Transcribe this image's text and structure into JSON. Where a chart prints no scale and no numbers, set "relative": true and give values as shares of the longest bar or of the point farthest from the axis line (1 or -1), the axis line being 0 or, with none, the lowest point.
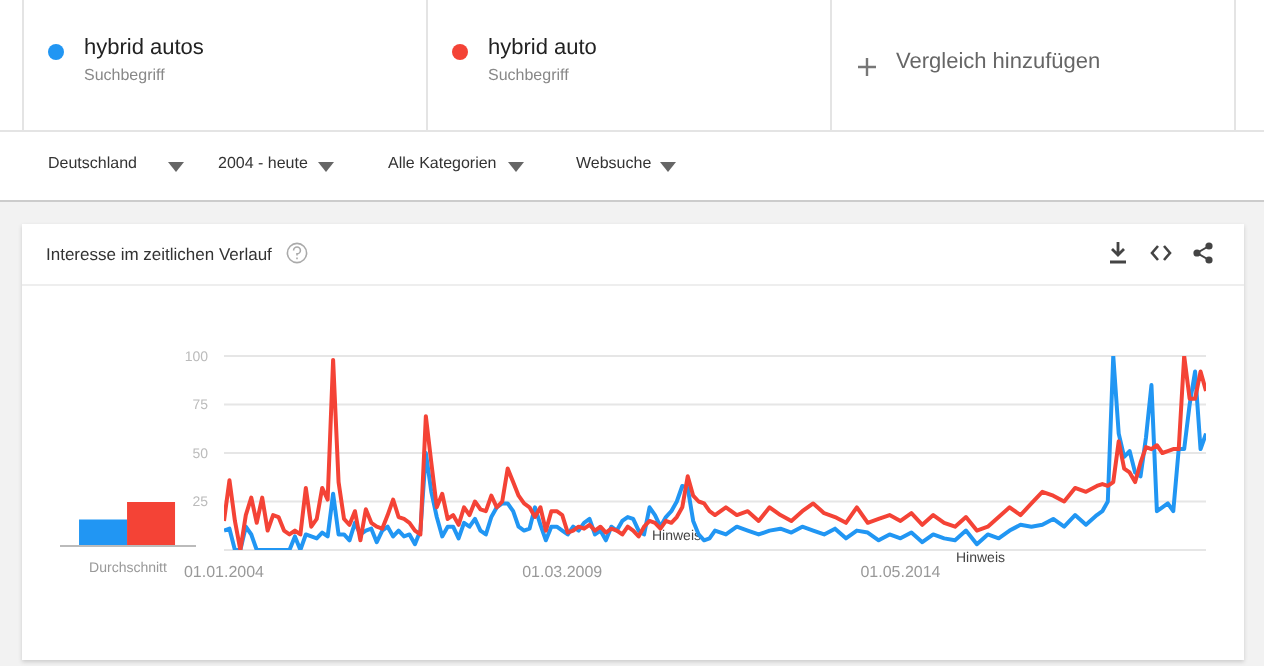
{
  "chart_data": [
    {
      "type": "bar",
      "categories": [
        "Durchschnitt"
      ],
      "relative": true,
      "series": [
        {
          "color": "#2196f3",
          "values": [
            0.6
          ]
        },
        {
          "color": "#f44336",
          "values": [
            1
          ]
        }
      ]
    },
    {
      "type": "line",
      "title": "Interesse im zeitlichen Verlauf",
      "legend": "top",
      "grid": "y",
      "marker": "none",
      "line_style": "solid",
      "x": [
        "2004-01",
        "2004-02",
        "2004-03",
        "2004-04",
        "2004-05",
        "2004-06",
        "2004-07",
        "2004-08",
        "2004-09",
        "2004-10",
        "2004-11",
        "2004-12",
        "2005-01",
        "2005-02",
        "2005-03",
        "2005-04",
        "2005-05",
        "2005-06",
        "2005-07",
        "2005-08",
        "2005-09",
        "2005-10",
        "2005-11",
        "2005-12",
        "2006-01",
        "2006-02",
        "2006-03",
        "2006-04",
        "2006-05",
        "2006-06",
        "2006-07",
        "2006-08",
        "2006-09",
        "2006-10",
        "2006-11",
        "2006-12",
        "2007-01",
        "2007-02",
        "2007-03",
        "2007-04",
        "2007-05",
        "2007-06",
        "2007-07",
        "2007-08",
        "2007-09",
        "2007-10",
        "2007-11",
        "2007-12",
        "2008-01",
        "2008-02",
        "2008-03",
        "2008-04",
        "2008-05",
        "2008-06",
        "2008-07",
        "2008-08",
        "2008-09",
        "2008-10",
        "2008-11",
        "2008-12",
        "2009-01",
        "2009-02",
        "2009-03",
        "2009-04",
        "2009-05",
        "2009-06",
        "2009-07",
        "2009-08",
        "2009-09",
        "2009-10",
        "2009-11",
        "2009-12",
        "2010-01",
        "2010-02",
        "2010-03",
        "2010-04",
        "2010-05",
        "2010-06",
        "2010-07",
        "2010-08",
        "2010-09",
        "2010-10",
        "2010-11",
        "2010-12",
        "2011-01",
        "2011-02",
        "2011-03",
        "2011-04",
        "2011-05",
        "2011-06",
        "2011-07",
        "2011-09",
        "2011-11",
        "2012-01",
        "2012-03",
        "2012-05",
        "2012-07",
        "2012-09",
        "2012-11",
        "2013-01",
        "2013-03",
        "2013-05",
        "2013-07",
        "2013-09",
        "2013-11",
        "2014-01",
        "2014-03",
        "2014-05",
        "2014-07",
        "2014-09",
        "2014-11",
        "2015-01",
        "2015-03",
        "2015-05",
        "2015-07",
        "2015-09",
        "2015-11",
        "2016-01",
        "2016-03",
        "2016-05",
        "2016-07",
        "2016-09",
        "2016-11",
        "2017-01",
        "2017-03",
        "2017-05",
        "2017-06",
        "2017-07",
        "2017-08",
        "2017-09",
        "2017-10",
        "2017-11",
        "2017-12",
        "2018-01",
        "2018-02",
        "2018-03",
        "2018-04",
        "2018-05",
        "2018-06",
        "2018-07",
        "2018-08",
        "2018-09",
        "2018-10",
        "2018-11",
        "2018-12",
        "2019-01"
      ],
      "xlim": [
        "2004-01",
        "2019-01"
      ],
      "xticks": [
        {
          "value": "2004-01-01",
          "label": "01.01.2004"
        },
        {
          "value": "2009-03-01",
          "label": "01.03.2009"
        },
        {
          "value": "2014-05-01",
          "label": "01.05.2014"
        }
      ],
      "ylim": [
        0,
        100
      ],
      "yticks": [
        {
          "value": 0,
          "label": null
        },
        25,
        50,
        75,
        100
      ],
      "series": [
        {
          "name": "hybrid autos",
          "color": "#2196f3",
          "values": [
            10,
            11,
            0,
            0,
            12,
            8,
            0,
            0,
            0,
            0,
            0,
            0,
            0,
            7,
            0,
            8,
            7,
            6,
            9,
            7,
            29,
            8,
            8,
            5,
            14,
            8,
            10,
            11,
            4,
            10,
            12,
            7,
            10,
            7,
            8,
            3,
            10,
            50,
            30,
            17,
            7,
            12,
            12,
            6,
            14,
            12,
            16,
            10,
            8,
            17,
            22,
            24,
            24,
            20,
            12,
            10,
            11,
            22,
            13,
            5,
            12,
            12,
            10,
            8,
            12,
            10,
            14,
            16,
            8,
            10,
            5,
            12,
            10,
            15,
            17,
            16,
            10,
            8,
            22,
            18,
            12,
            17,
            20,
            25,
            33,
            32,
            15,
            8,
            5,
            6,
            10,
            8,
            12,
            10,
            8,
            10,
            11,
            9,
            12,
            10,
            8,
            11,
            6,
            10,
            9,
            5,
            8,
            6,
            9,
            4,
            8,
            6,
            5,
            10,
            3,
            8,
            6,
            10,
            13,
            12,
            13,
            16,
            12,
            18,
            13,
            18,
            20,
            25,
            100,
            60,
            48,
            51,
            40,
            38,
            58,
            85,
            20,
            22,
            24,
            20,
            52,
            52,
            75,
            92,
            52,
            60
          ]
        },
        {
          "name": "hybrid auto",
          "color": "#f44336",
          "values": [
            15,
            36,
            15,
            0,
            18,
            27,
            14,
            27,
            10,
            18,
            17,
            10,
            8,
            10,
            8,
            32,
            12,
            16,
            32,
            26,
            98,
            35,
            16,
            13,
            20,
            5,
            21,
            14,
            12,
            11,
            18,
            26,
            17,
            16,
            14,
            10,
            8,
            69,
            45,
            22,
            29,
            16,
            18,
            13,
            22,
            18,
            25,
            21,
            20,
            28,
            22,
            25,
            42,
            35,
            28,
            24,
            22,
            17,
            22,
            10,
            20,
            20,
            18,
            9,
            10,
            12,
            11,
            13,
            10,
            12,
            9,
            11,
            10,
            8,
            12,
            10,
            7,
            12,
            15,
            14,
            11,
            15,
            14,
            17,
            22,
            38,
            28,
            25,
            24,
            20,
            18,
            22,
            18,
            20,
            15,
            22,
            18,
            15,
            20,
            24,
            19,
            17,
            14,
            22,
            14,
            16,
            18,
            15,
            19,
            13,
            18,
            14,
            12,
            17,
            10,
            12,
            17,
            22,
            18,
            24,
            30,
            28,
            25,
            32,
            30,
            33,
            34,
            33,
            35,
            56,
            42,
            40,
            35,
            45,
            53,
            52,
            54,
            50,
            51,
            52,
            52,
            100,
            78,
            78,
            92,
            82
          ]
        }
      ],
      "annotations": [
        "Suchbegriff",
        "Suchbegriff",
        "Vergleich hinzufügen",
        "Deutschland",
        "2004 - heute",
        "Alle Kategorien",
        "Websuche",
        "Hinweis",
        "Hinweis"
      ]
    }
  ]
}
